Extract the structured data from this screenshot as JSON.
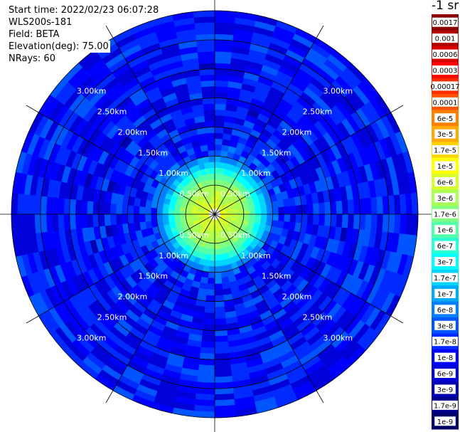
{
  "info": {
    "start_time": "Start time: 2022/02/23 06:07:28",
    "instrument": "WLS200s-181",
    "field": "Field: BETA",
    "elevation": "Elevation(deg): 75.00",
    "nrays": "NRays: 60"
  },
  "chart_data": {
    "type": "heatmap",
    "subtype": "polar-ppi",
    "range_ring_labels": [
      "0.50km",
      "1.00km",
      "1.50km",
      "2.00km",
      "2.50km",
      "3.00km"
    ],
    "range_rings_km": [
      0.5,
      1.0,
      1.5,
      2.0,
      2.5,
      3.0
    ],
    "max_range_km": 3.5,
    "n_rays": 60,
    "azimuth_spokes_deg": [
      0,
      30,
      60,
      90,
      120,
      150,
      180,
      210,
      240,
      270,
      300,
      330
    ],
    "colorbar": {
      "unit_label": "-1 sr",
      "tick_labels": [
        "0.0017",
        "0.001",
        "0.0006",
        "0.0003",
        "0.00017",
        "0.0001",
        "6e-5",
        "3e-5",
        "1.7e-5",
        "1e-5",
        "6e-6",
        "3e-6",
        "1.7e-6",
        "1e-6",
        "6e-7",
        "3e-7",
        "1.7e-7",
        "1e-7",
        "6e-8",
        "3e-8",
        "1.7e-8",
        "1e-8",
        "6e-9",
        "3e-9",
        "1.7e-9",
        "1e-9"
      ],
      "colors": [
        "#8b0000",
        "#b20000",
        "#d80000",
        "#ff0000",
        "#ff2a00",
        "#ff5500",
        "#ff8000",
        "#ffaa00",
        "#ffd400",
        "#ffff00",
        "#d4ff2a",
        "#aaff55",
        "#80ff80",
        "#55ffaa",
        "#2affd4",
        "#00ffff",
        "#00d4ff",
        "#00aaff",
        "#0080ff",
        "#0055ff",
        "#002aff",
        "#0000ff",
        "#0000d8",
        "#0000b2",
        "#00008b",
        "#000066"
      ]
    },
    "radial_profile_log10": [
      {
        "range_km": 0.0,
        "value": -5.0
      },
      {
        "range_km": 0.2,
        "value": -5.3
      },
      {
        "range_km": 0.45,
        "value": -5.5
      },
      {
        "range_km": 0.6,
        "value": -5.8
      },
      {
        "range_km": 0.75,
        "value": -6.4
      },
      {
        "range_km": 0.9,
        "value": -7.0
      },
      {
        "range_km": 1.05,
        "value": -7.6
      },
      {
        "range_km": 1.3,
        "value": -7.9
      },
      {
        "range_km": 2.0,
        "value": -7.95
      },
      {
        "range_km": 3.5,
        "value": -7.9
      }
    ]
  }
}
